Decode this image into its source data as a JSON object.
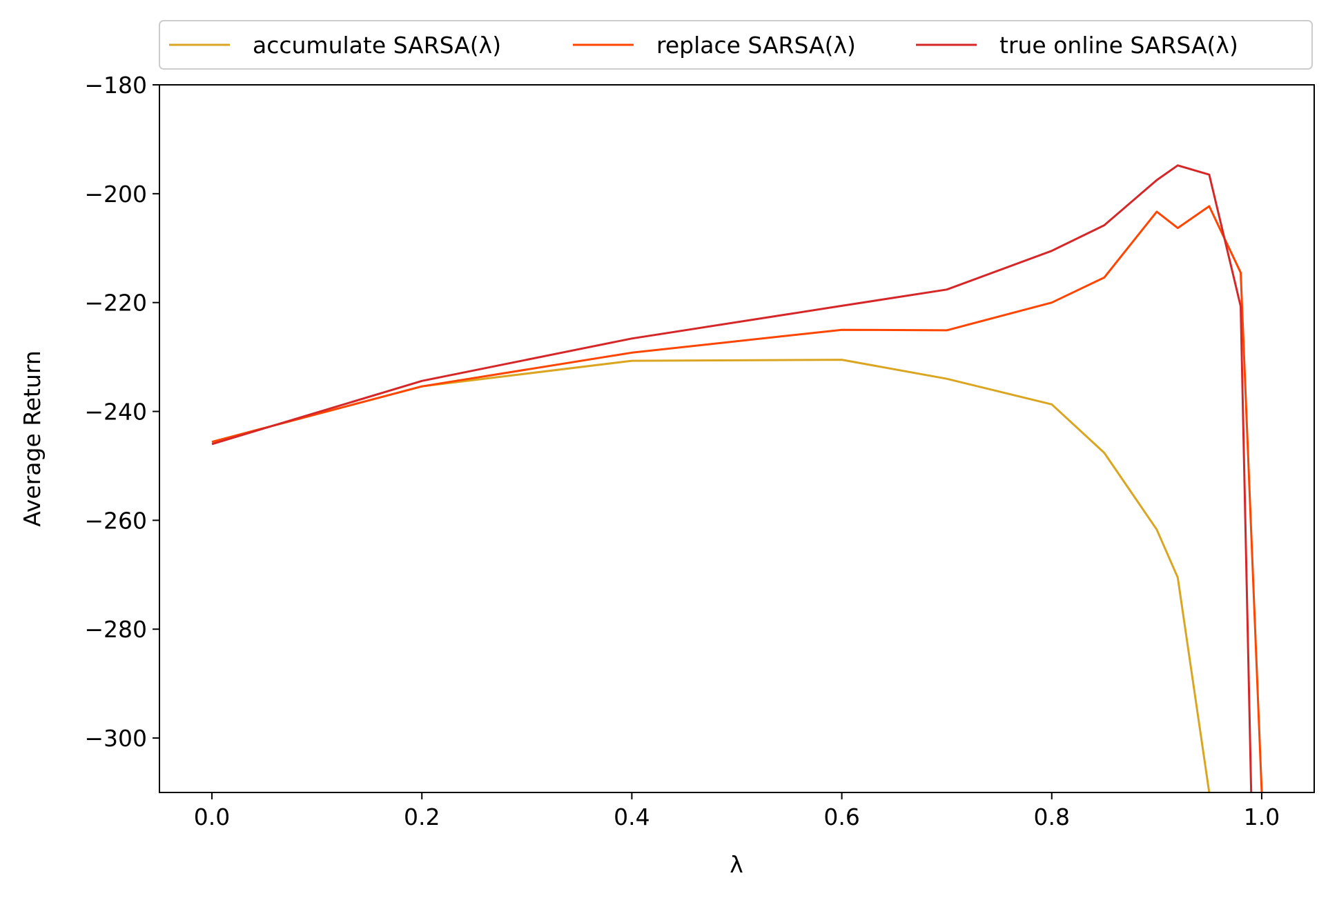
{
  "chart_data": {
    "type": "line",
    "title": "",
    "xlabel": "λ",
    "ylabel": "Average Return",
    "xlim": [
      -0.05,
      1.05
    ],
    "ylim": [
      -310,
      -180
    ],
    "xticks": [
      0.0,
      0.2,
      0.4,
      0.6,
      0.8,
      1.0
    ],
    "xtick_labels": [
      "0.0",
      "0.2",
      "0.4",
      "0.6",
      "0.8",
      "1.0"
    ],
    "yticks": [
      -300,
      -280,
      -260,
      -240,
      -220,
      -200,
      -180
    ],
    "ytick_labels": [
      "−300",
      "−280",
      "−260",
      "−240",
      "−220",
      "−200",
      "−180"
    ],
    "grid": false,
    "legend_position": "top, outside above plot, three columns",
    "series": [
      {
        "name": "accumulate SARSA(λ)",
        "color": "#DAA520",
        "x": [
          0.0,
          0.2,
          0.4,
          0.6,
          0.7,
          0.8,
          0.85,
          0.9,
          0.92,
          0.95
        ],
        "y": [
          -245.6,
          -235.4,
          -230.7,
          -230.5,
          -234.0,
          -238.7,
          -247.6,
          -261.7,
          -270.5,
          -310
        ]
      },
      {
        "name": "replace SARSA(λ)",
        "color": "#FF4500",
        "x": [
          0.0,
          0.2,
          0.4,
          0.6,
          0.7,
          0.8,
          0.85,
          0.9,
          0.92,
          0.95,
          0.98,
          1.0
        ],
        "y": [
          -245.6,
          -235.4,
          -229.2,
          -225.0,
          -225.1,
          -220.0,
          -215.4,
          -203.3,
          -206.3,
          -202.3,
          -214.5,
          -310
        ]
      },
      {
        "name": "true online SARSA(λ)",
        "color": "#D62728",
        "x": [
          0.0,
          0.2,
          0.4,
          0.6,
          0.7,
          0.8,
          0.85,
          0.9,
          0.92,
          0.95,
          0.98,
          0.99
        ],
        "y": [
          -246.0,
          -234.4,
          -226.6,
          -220.6,
          -217.6,
          -210.5,
          -205.8,
          -197.5,
          -194.8,
          -196.5,
          -220.7,
          -310
        ]
      }
    ]
  }
}
